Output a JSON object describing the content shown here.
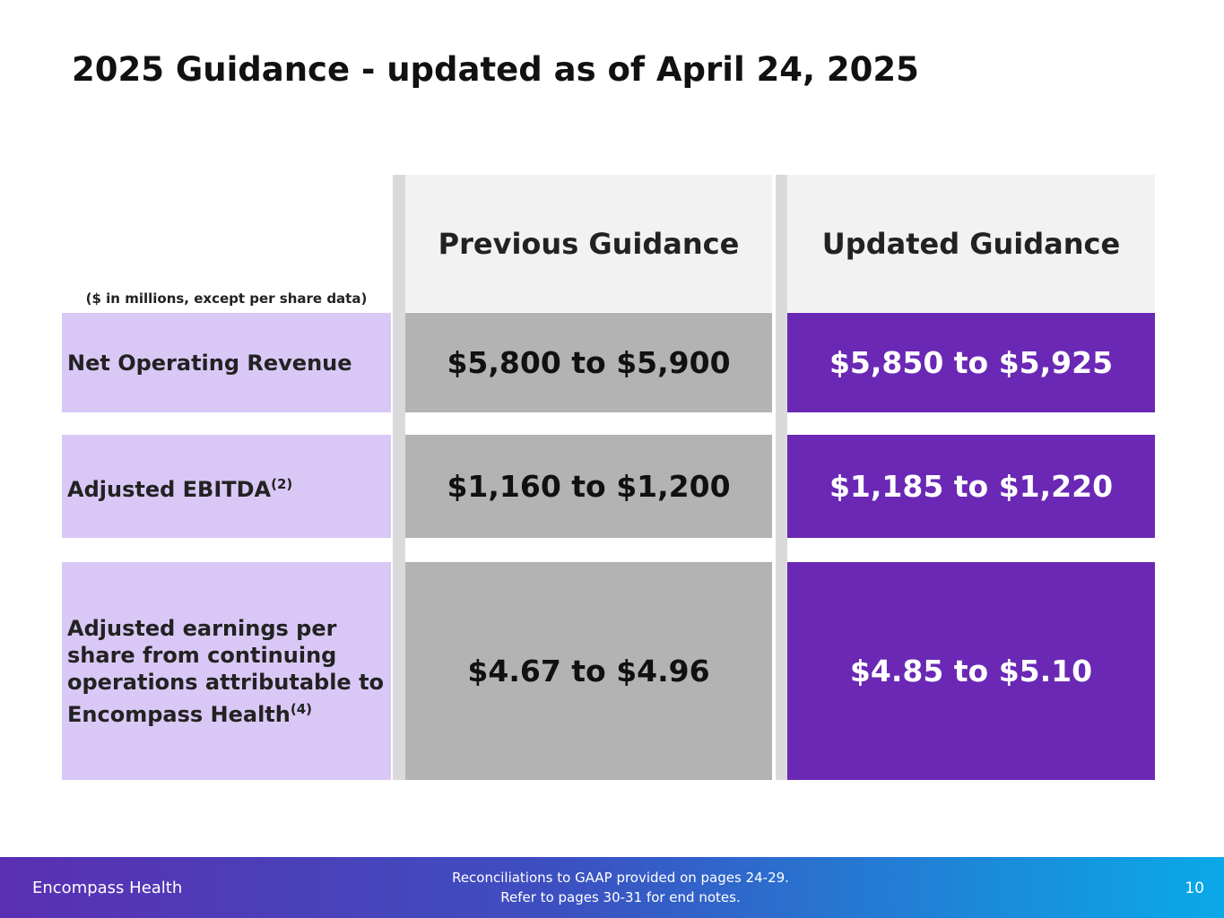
{
  "header": {
    "title": "2025 Guidance - updated as of April 24, 2025"
  },
  "table": {
    "note": "($ in millions, except per share data)",
    "columns": [
      "Previous Guidance",
      "Updated Guidance"
    ],
    "rows": [
      {
        "label": "Net Operating Revenue",
        "previous": "$5,800 to $5,900",
        "updated": "$5,850 to $5,925"
      },
      {
        "label": "Adjusted EBITDA",
        "footnote": "(2)",
        "previous": "$1,160 to $1,200",
        "updated": "$1,185 to $1,220"
      },
      {
        "label": "Adjusted earnings per share from continuing operations attributable to Encompass Health",
        "footnote": "(4)",
        "previous": "$4.67 to $4.96",
        "updated": "$4.85 to $5.10"
      }
    ]
  },
  "footer": {
    "company": "Encompass Health",
    "notes": [
      "Reconciliations to GAAP provided on pages 24-29.",
      "Refer to pages 30-31 for end notes."
    ],
    "page": "10"
  }
}
